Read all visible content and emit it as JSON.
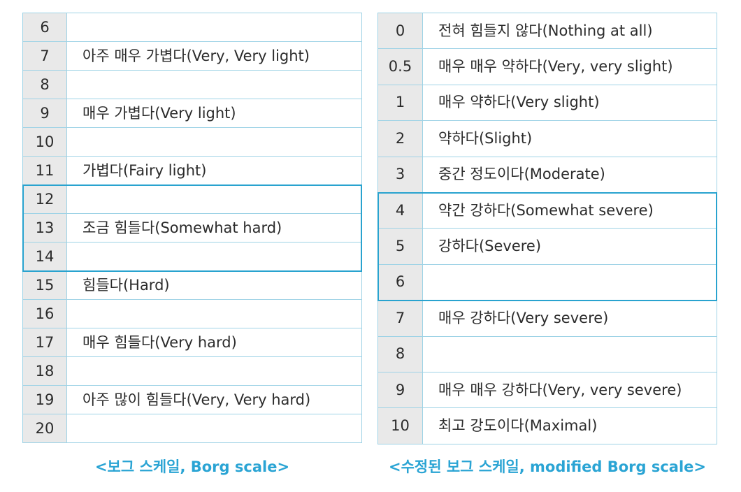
{
  "borg_scale": {
    "caption": "<보그 스케일, Borg scale>",
    "rows": [
      {
        "value": "6",
        "label": ""
      },
      {
        "value": "7",
        "label": "아주 매우 가볍다(Very, Very light)"
      },
      {
        "value": "8",
        "label": ""
      },
      {
        "value": "9",
        "label": "매우 가볍다(Very light)"
      },
      {
        "value": "10",
        "label": ""
      },
      {
        "value": "11",
        "label": "가볍다(Fairy light)"
      },
      {
        "value": "12",
        "label": ""
      },
      {
        "value": "13",
        "label": "조금 힘들다(Somewhat hard)"
      },
      {
        "value": "14",
        "label": ""
      },
      {
        "value": "15",
        "label": "힘들다(Hard)"
      },
      {
        "value": "16",
        "label": ""
      },
      {
        "value": "17",
        "label": "매우 힘들다(Very hard)"
      },
      {
        "value": "18",
        "label": ""
      },
      {
        "value": "19",
        "label": "아주 많이 힘들다(Very, Very hard)"
      },
      {
        "value": "20",
        "label": ""
      }
    ],
    "highlighted_values": [
      "12",
      "13",
      "14"
    ]
  },
  "modified_borg_scale": {
    "caption": "<수정된 보그 스케일, modified Borg scale>",
    "rows": [
      {
        "value": "0",
        "label": "전혀 힘들지 않다(Nothing at all)"
      },
      {
        "value": "0.5",
        "label": "매우 매우 약하다(Very, very slight)"
      },
      {
        "value": "1",
        "label": "매우 약하다(Very slight)"
      },
      {
        "value": "2",
        "label": "약하다(Slight)"
      },
      {
        "value": "3",
        "label": "중간 정도이다(Moderate)"
      },
      {
        "value": "4",
        "label": "약간 강하다(Somewhat severe)"
      },
      {
        "value": "5",
        "label": "강하다(Severe)"
      },
      {
        "value": "6",
        "label": ""
      },
      {
        "value": "7",
        "label": "매우 강하다(Very severe)"
      },
      {
        "value": "8",
        "label": ""
      },
      {
        "value": "9",
        "label": "매우 매우 강하다(Very, very severe)"
      },
      {
        "value": "10",
        "label": "최고 강도이다(Maximal)"
      }
    ],
    "highlighted_values": [
      "4",
      "5",
      "6"
    ]
  },
  "colors": {
    "grid_line": "#9fd3e6",
    "highlight_border": "#29a3cf",
    "number_cell_bg": "#e9e9e9",
    "caption": "#2aa4d4"
  }
}
